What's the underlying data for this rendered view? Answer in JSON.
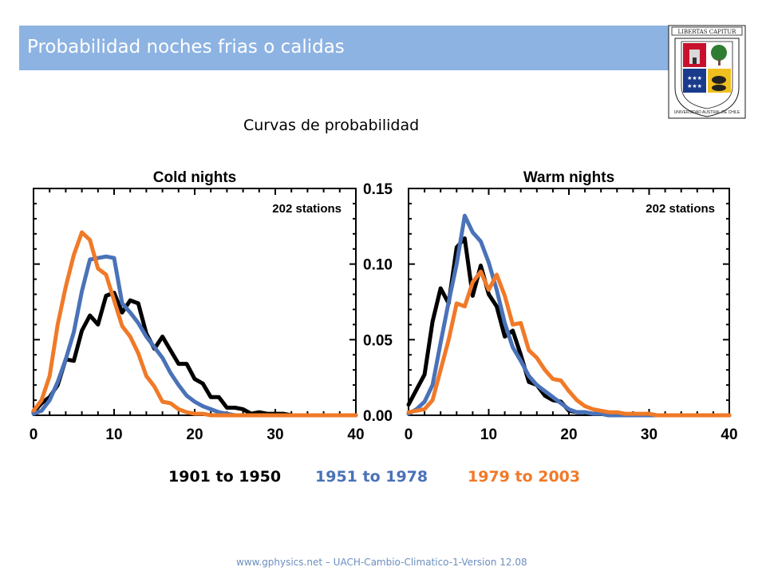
{
  "header": {
    "title": "Probabilidad noches frias o calidas"
  },
  "logo": {
    "top_text": "LIBERTAS CAPITUR",
    "ring_text": "UNIVERSIDAD AUSTRAL DE CHILE",
    "colors": {
      "red": "#c8102e",
      "blue": "#1a3a8c",
      "green": "#2e7d32",
      "gold": "#f0c020"
    }
  },
  "subtitle": "Curvas de probabilidad",
  "legend": [
    {
      "label": "1901 to 1950",
      "color": "#000000"
    },
    {
      "label": "1951 to 1978",
      "color": "#4a72b8"
    },
    {
      "label": "1979 to 2003",
      "color": "#f07a28"
    }
  ],
  "footer": "www.gphysics.net – UACH-Cambio-Climatico-1-Version 12.08",
  "chart_data": [
    {
      "type": "line",
      "title": "Cold nights",
      "annotation": "202 stations",
      "xlim": [
        0,
        40
      ],
      "ylim": [
        0,
        0.15
      ],
      "xticks": [
        "0",
        "10",
        "20",
        "30",
        "40"
      ],
      "yticks": [],
      "series": [
        {
          "name": "1901 to 1950",
          "color": "#000000",
          "x": [
            0,
            1,
            2,
            3,
            4,
            5,
            6,
            7,
            8,
            9,
            10,
            11,
            12,
            13,
            14,
            15,
            16,
            17,
            18,
            19,
            20,
            21,
            22,
            23,
            24,
            25,
            26,
            27,
            28,
            29,
            30,
            31,
            32,
            33,
            34,
            35,
            36,
            37,
            38,
            39,
            40
          ],
          "y": [
            0.002,
            0.008,
            0.012,
            0.02,
            0.037,
            0.036,
            0.056,
            0.066,
            0.06,
            0.079,
            0.081,
            0.068,
            0.076,
            0.074,
            0.054,
            0.044,
            0.052,
            0.043,
            0.034,
            0.034,
            0.024,
            0.021,
            0.012,
            0.012,
            0.005,
            0.005,
            0.004,
            0.001,
            0.002,
            0.001,
            0.001,
            0.001,
            0,
            0,
            0,
            0,
            0,
            0,
            0,
            0,
            0
          ]
        },
        {
          "name": "1951 to 1978",
          "color": "#4a72b8",
          "x": [
            0,
            1,
            2,
            3,
            4,
            5,
            6,
            7,
            8,
            9,
            10,
            11,
            12,
            13,
            14,
            15,
            16,
            17,
            18,
            19,
            20,
            21,
            22,
            23,
            24,
            25,
            26,
            27,
            28,
            29,
            30,
            31,
            32,
            33,
            34,
            35,
            36,
            37,
            38,
            39,
            40
          ],
          "y": [
            0.001,
            0.003,
            0.01,
            0.022,
            0.037,
            0.055,
            0.082,
            0.103,
            0.104,
            0.105,
            0.104,
            0.074,
            0.068,
            0.061,
            0.052,
            0.045,
            0.038,
            0.028,
            0.02,
            0.013,
            0.009,
            0.006,
            0.004,
            0.002,
            0.001,
            0,
            0,
            0,
            0,
            0,
            0,
            0,
            0,
            0,
            0,
            0,
            0,
            0,
            0,
            0,
            0
          ]
        },
        {
          "name": "1979 to 2003",
          "color": "#f07a28",
          "x": [
            0,
            1,
            2,
            3,
            4,
            5,
            6,
            7,
            8,
            9,
            10,
            11,
            12,
            13,
            14,
            15,
            16,
            17,
            18,
            19,
            20,
            21,
            22,
            23,
            24,
            25,
            26,
            27,
            28,
            29,
            30,
            31,
            32,
            33,
            34,
            35,
            36,
            37,
            38,
            39,
            40
          ],
          "y": [
            0.003,
            0.01,
            0.026,
            0.06,
            0.085,
            0.106,
            0.121,
            0.116,
            0.097,
            0.093,
            0.076,
            0.059,
            0.052,
            0.041,
            0.026,
            0.019,
            0.009,
            0.008,
            0.004,
            0.002,
            0.001,
            0.001,
            0,
            0,
            0,
            0,
            0,
            0,
            0,
            0,
            0,
            0,
            0,
            0,
            0,
            0,
            0,
            0,
            0,
            0,
            0
          ]
        }
      ]
    },
    {
      "type": "line",
      "title": "Warm nights",
      "annotation": "202 stations",
      "xlim": [
        0,
        40
      ],
      "ylim": [
        0,
        0.15
      ],
      "xticks": [
        "0",
        "10",
        "20",
        "30",
        "40"
      ],
      "yticks": [
        "0.00",
        "0.05",
        "0.10",
        "0.15"
      ],
      "series": [
        {
          "name": "1901 to 1950",
          "color": "#000000",
          "x": [
            0,
            1,
            2,
            3,
            4,
            5,
            6,
            7,
            8,
            9,
            10,
            11,
            12,
            13,
            14,
            15,
            16,
            17,
            18,
            19,
            20,
            21,
            22,
            23,
            24,
            25,
            26,
            27,
            28,
            29,
            30,
            31,
            32,
            33,
            34,
            35,
            36,
            37,
            38,
            39,
            40
          ],
          "y": [
            0.007,
            0.017,
            0.027,
            0.062,
            0.084,
            0.074,
            0.111,
            0.117,
            0.079,
            0.099,
            0.08,
            0.072,
            0.052,
            0.056,
            0.04,
            0.022,
            0.02,
            0.013,
            0.01,
            0.009,
            0.003,
            0.002,
            0.002,
            0.001,
            0.001,
            0,
            0,
            0,
            0,
            0,
            0,
            0,
            0,
            0,
            0,
            0,
            0,
            0,
            0,
            0,
            0
          ]
        },
        {
          "name": "1951 to 1978",
          "color": "#4a72b8",
          "x": [
            0,
            1,
            2,
            3,
            4,
            5,
            6,
            7,
            8,
            9,
            10,
            11,
            12,
            13,
            14,
            15,
            16,
            17,
            18,
            19,
            20,
            21,
            22,
            23,
            24,
            25,
            26,
            27,
            28,
            29,
            30,
            31,
            32,
            33,
            34,
            35,
            36,
            37,
            38,
            39,
            40
          ],
          "y": [
            0.001,
            0.004,
            0.009,
            0.02,
            0.048,
            0.075,
            0.1,
            0.132,
            0.121,
            0.115,
            0.101,
            0.083,
            0.061,
            0.045,
            0.036,
            0.026,
            0.02,
            0.016,
            0.012,
            0.008,
            0.004,
            0.002,
            0.002,
            0.001,
            0.001,
            0,
            0,
            0,
            0,
            0,
            0,
            0,
            0,
            0,
            0,
            0,
            0,
            0,
            0,
            0,
            0
          ]
        },
        {
          "name": "1979 to 2003",
          "color": "#f07a28",
          "x": [
            0,
            1,
            2,
            3,
            4,
            5,
            6,
            7,
            8,
            9,
            10,
            11,
            12,
            13,
            14,
            15,
            16,
            17,
            18,
            19,
            20,
            21,
            22,
            23,
            24,
            25,
            26,
            27,
            28,
            29,
            30,
            31,
            32,
            33,
            34,
            35,
            36,
            37,
            38,
            39,
            40
          ],
          "y": [
            0.002,
            0.003,
            0.004,
            0.01,
            0.03,
            0.05,
            0.074,
            0.072,
            0.088,
            0.095,
            0.083,
            0.093,
            0.079,
            0.06,
            0.061,
            0.043,
            0.038,
            0.03,
            0.024,
            0.023,
            0.016,
            0.01,
            0.006,
            0.004,
            0.003,
            0.002,
            0.002,
            0.001,
            0.001,
            0.001,
            0.001,
            0,
            0,
            0,
            0,
            0,
            0,
            0,
            0,
            0,
            0
          ]
        }
      ]
    }
  ]
}
